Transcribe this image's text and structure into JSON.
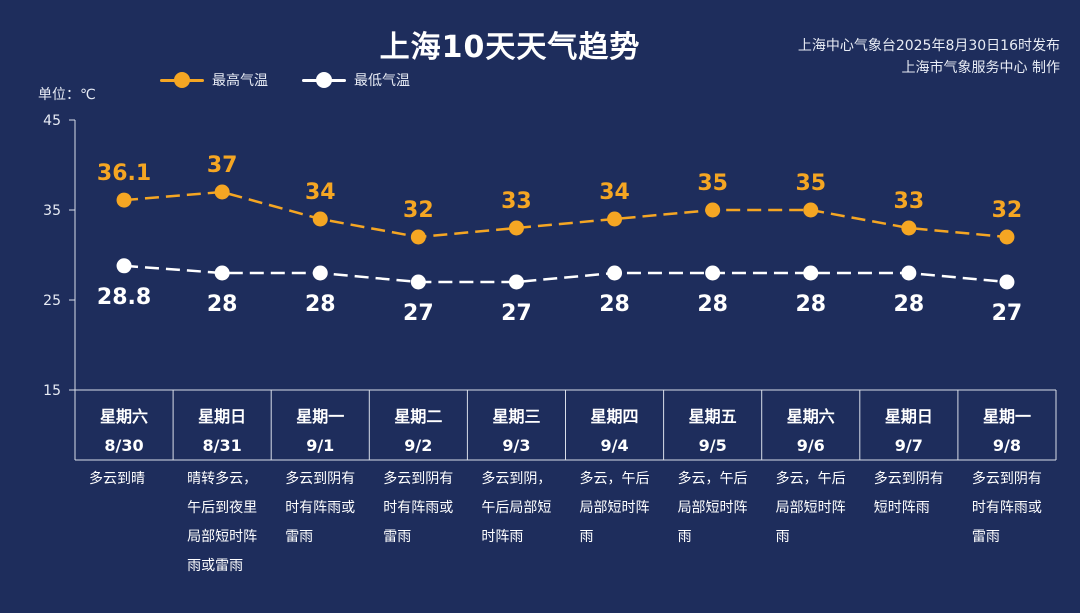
{
  "title": "上海10天天气趋势",
  "publisher": {
    "line1": "上海中心气象台2025年8月30日16时发布",
    "line2": "上海市气象服务中心 制作"
  },
  "unit_label": "单位：℃",
  "colors": {
    "background": "#1e2d5c",
    "high": "#f5a623",
    "low": "#ffffff",
    "axis": "#d8dde8"
  },
  "legend": [
    {
      "name": "最高气温",
      "color": "#f5a623"
    },
    {
      "name": "最低气温",
      "color": "#ffffff"
    }
  ],
  "chart_data": {
    "type": "line",
    "title": "上海10天天气趋势",
    "ylabel": "单位：℃",
    "ylim": [
      15,
      45
    ],
    "yticks": [
      15,
      25,
      35,
      45
    ],
    "categories": [
      {
        "weekday": "星期六",
        "date": "8/30"
      },
      {
        "weekday": "星期日",
        "date": "8/31"
      },
      {
        "weekday": "星期一",
        "date": "9/1"
      },
      {
        "weekday": "星期二",
        "date": "9/2"
      },
      {
        "weekday": "星期三",
        "date": "9/3"
      },
      {
        "weekday": "星期四",
        "date": "9/4"
      },
      {
        "weekday": "星期五",
        "date": "9/5"
      },
      {
        "weekday": "星期六",
        "date": "9/6"
      },
      {
        "weekday": "星期日",
        "date": "9/7"
      },
      {
        "weekday": "星期一",
        "date": "9/8"
      }
    ],
    "series": [
      {
        "name": "最高气温",
        "values": [
          36.1,
          37,
          34,
          32,
          33,
          34,
          35,
          35,
          33,
          32
        ],
        "labels": [
          "36.1",
          "37",
          "34",
          "32",
          "33",
          "34",
          "35",
          "35",
          "33",
          "32"
        ]
      },
      {
        "name": "最低气温",
        "values": [
          28.8,
          28,
          28,
          27,
          27,
          28,
          28,
          28,
          28,
          27
        ],
        "labels": [
          "28.8",
          "28",
          "28",
          "27",
          "27",
          "28",
          "28",
          "28",
          "28",
          "27"
        ]
      }
    ],
    "legend_position": "top-left",
    "grid": false
  },
  "descriptions": [
    "多云到晴",
    "晴转多云，午后到夜里局部短时阵雨或雷雨",
    "多云到阴有时有阵雨或雷雨",
    "多云到阴有时有阵雨或雷雨",
    "多云到阴，午后局部短时阵雨",
    "多云，午后局部短时阵雨",
    "多云，午后局部短时阵雨",
    "多云，午后局部短时阵雨",
    "多云到阴有短时阵雨",
    "多云到阴有时有阵雨或雷雨"
  ]
}
